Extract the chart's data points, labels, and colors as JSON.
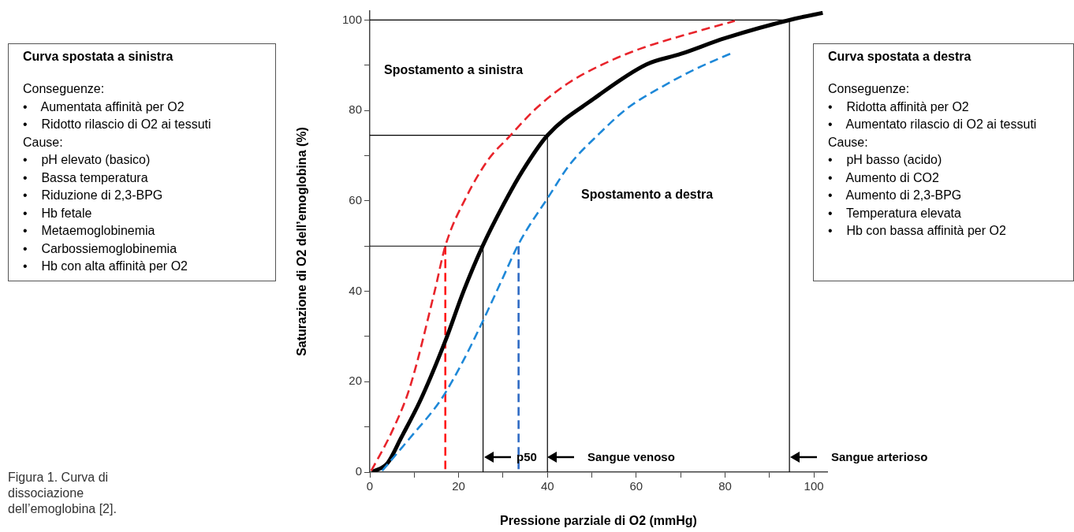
{
  "chart_data": [
    {
      "type": "line",
      "xlabel": "Pressione parziale di O2 (mmHg)",
      "ylabel": "Saturazione di O2 dell’emoglobina (%)",
      "xlim": [
        0,
        103
      ],
      "ylim": [
        0,
        102
      ],
      "xticks": [
        0,
        {
          "value": 10,
          "label": null
        },
        20,
        {
          "value": 30,
          "label": null
        },
        40,
        {
          "value": 50,
          "label": null
        },
        60,
        {
          "value": 70,
          "label": null
        },
        80,
        {
          "value": 90,
          "label": null
        },
        100
      ],
      "yticks": [
        0,
        {
          "value": 10,
          "label": null
        },
        20,
        {
          "value": 30,
          "label": null
        },
        40,
        {
          "value": 50,
          "label": null
        },
        60,
        {
          "value": 70,
          "label": null
        },
        80,
        {
          "value": 90,
          "label": null
        },
        100
      ],
      "grid": false,
      "marker": "none",
      "line_style": "solid",
      "series": [
        {
          "color": "#e8242b",
          "line_style": "dashed",
          "x": [
            0.3,
            2,
            5,
            9,
            14.6,
            17,
            21.8,
            26.8,
            31,
            37.5,
            44.6,
            52,
            61,
            71.6,
            82.2
          ],
          "values": [
            0.3,
            3.3,
            9,
            18.7,
            40,
            50,
            61,
            69.3,
            73.8,
            80.5,
            86,
            90,
            93.7,
            96.9,
            99.8
          ]
        },
        {
          "color": "#1e88d8",
          "line_style": "dashed",
          "x": [
            2.8,
            9,
            16,
            20.7,
            25.4,
            29.5,
            33.7,
            40.3,
            45,
            51.7,
            58,
            65.9,
            73,
            81.5
          ],
          "values": [
            0.3,
            7.5,
            16,
            24,
            33.3,
            42,
            50.8,
            61,
            68,
            74.9,
            80.5,
            85.3,
            89,
            92.7
          ]
        },
        {
          "color": "#000000",
          "x": [
            0.5,
            4,
            7,
            11.4,
            17,
            21.1,
            25.4,
            30,
            34.3,
            40,
            50.3,
            62.3,
            70,
            80,
            95.7,
            102
          ],
          "values": [
            0,
            2,
            7.5,
            15.9,
            29,
            40,
            50,
            59,
            66.5,
            74.5,
            82.5,
            90.2,
            92.5,
            96,
            100.3,
            101.6
          ]
        },
        {
          "color": "#000000",
          "x": [
            0,
            25.5,
            25.5
          ],
          "values": [
            50,
            50,
            0
          ]
        },
        {
          "color": "#000000",
          "x": [
            0,
            40,
            40
          ],
          "values": [
            74.5,
            74.5,
            0
          ]
        },
        {
          "color": "#000000",
          "x": [
            0,
            94.5,
            94.5
          ],
          "values": [
            100,
            100,
            0
          ]
        },
        {
          "color": "#ff1a1a",
          "line_style": "dashed",
          "x": [
            17,
            17
          ],
          "values": [
            50,
            0
          ]
        },
        {
          "color": "#2f6bc4",
          "line_style": "dashed",
          "x": [
            33.5,
            33.5
          ],
          "values": [
            50,
            0
          ]
        }
      ],
      "annotations": [
        "Spostamento a sinistra",
        "Spostamento a destra",
        "Figura 1. Curva di dissociazione dell’emoglobina [2].",
        "p50",
        "Sangue venoso",
        "Sangue arterioso"
      ]
    },
    {
      "type": "other",
      "title": "Curva spostata a sinistra",
      "annotations": [
        "Conseguenze:",
        "•    Aumentata affinità per O2",
        "•    Ridotto rilascio di O2 ai tessuti",
        "Cause:",
        "•    pH elevato (basico)",
        "•    Bassa temperatura",
        "•    Riduzione di 2,3-BPG",
        "•    Hb fetale",
        "•    Metaemoglobinemia",
        "•    Carbossiemoglobinemia",
        "•    Hb con alta affinità per O2"
      ]
    },
    {
      "type": "other",
      "title": "Curva spostata a destra",
      "annotations": [
        "Conseguenze:",
        "•    Ridotta affinità per O2",
        "•    Aumentato rilascio di O2 ai tessuti",
        "Cause:",
        "•    pH basso (acido)",
        "•    Aumento di CO2",
        "•    Aumento di 2,3-BPG",
        "•    Temperatura elevata",
        "•    Hb con bassa affinità per O2"
      ]
    }
  ]
}
